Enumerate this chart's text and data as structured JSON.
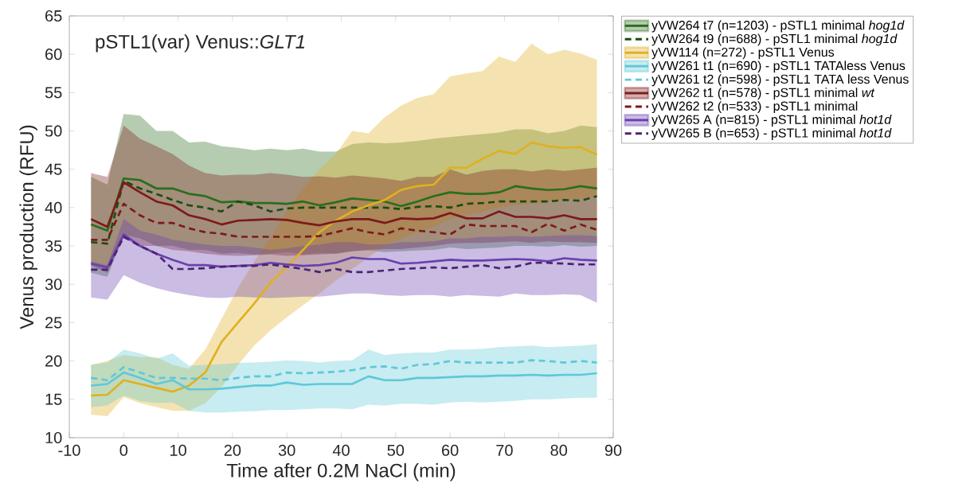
{
  "chart_data": {
    "type": "line",
    "title": "pSTL1(var) Venus::*GLT1*",
    "xlabel": "Time after 0.2M NaCl (min)",
    "ylabel": "Venus production (RFU)",
    "x": [
      -6,
      -3,
      0,
      3,
      6,
      9,
      12,
      15,
      18,
      21,
      24,
      27,
      30,
      33,
      36,
      39,
      42,
      45,
      48,
      51,
      54,
      57,
      60,
      63,
      66,
      69,
      72,
      75,
      78,
      81,
      84,
      87
    ],
    "xlim": [
      -10,
      90
    ],
    "xticks": [
      -10,
      0,
      10,
      20,
      30,
      40,
      50,
      60,
      70,
      80,
      90
    ],
    "ylim": [
      10,
      65
    ],
    "yticks": [
      10,
      15,
      20,
      25,
      30,
      35,
      40,
      45,
      50,
      55,
      60,
      65
    ],
    "legend": "top right",
    "grid": false,
    "line_style": "solid",
    "series": [
      {
        "name": "yVW264 t7 (n=1203) - pSTL1 minimal *hog1d*",
        "color": "#2a6e1e",
        "values": [
          37.8,
          37,
          43.8,
          43.6,
          42.5,
          42.5,
          41.8,
          41.5,
          40.7,
          40.8,
          40.6,
          40.6,
          40.5,
          40.8,
          40.3,
          40.7,
          41.2,
          41,
          40.8,
          40.2,
          40.8,
          41.5,
          42,
          41.8,
          41.8,
          42,
          42.8,
          42.5,
          42.3,
          42.4,
          42.8,
          42.5
        ],
        "upper": [
          44,
          43,
          52.2,
          52,
          50,
          50,
          48.5,
          48.6,
          48,
          47.8,
          47.5,
          47.7,
          47.5,
          47.7,
          47.3,
          47.3,
          48.3,
          48.5,
          48.4,
          48.5,
          48.7,
          49,
          49.2,
          49.4,
          49.6,
          49.8,
          50.2,
          50.2,
          49.7,
          50,
          50.7,
          50.5
        ],
        "lower": [
          31.5,
          31,
          36.5,
          36,
          35,
          35,
          34.5,
          34.5,
          34,
          34.1,
          33.9,
          34,
          34.2,
          33.9,
          34.1,
          34,
          34.3,
          34.4,
          34.2,
          34.3,
          34.4,
          34.5,
          34.8,
          34.6,
          34.7,
          34.8,
          35,
          35,
          34.9,
          35.1,
          34.9,
          35
        ]
      },
      {
        "name": "yVW264 t9 (n=688) - pSTL1 minimal *hog1d*",
        "color": "#1b4d12",
        "line_style": "dashed",
        "values": [
          35.5,
          35.3,
          43.5,
          42.5,
          41.8,
          41,
          40.3,
          40,
          39.5,
          40.8,
          40.3,
          39.5,
          39.9,
          40,
          40,
          40,
          40,
          40,
          40,
          39.8,
          40.1,
          40.2,
          40,
          40.5,
          40.6,
          40.8,
          40.8,
          40.8,
          40.8,
          41,
          40.9,
          41.5
        ]
      },
      {
        "name": "yVW114 (n=272) - pSTL1 Venus",
        "color": "#e0b020",
        "values": [
          15.5,
          15.6,
          17.5,
          17,
          16.5,
          16,
          16.8,
          18.5,
          22.5,
          25,
          27.5,
          30.2,
          32.3,
          34.5,
          36.8,
          38.3,
          39.5,
          40.3,
          41,
          42.3,
          42.8,
          43,
          45.2,
          45.2,
          46.4,
          47.4,
          47,
          48.5,
          48,
          47.8,
          47.9,
          46.9
        ],
        "upper": [
          19.5,
          20,
          20.8,
          20.5,
          20.5,
          19.5,
          19,
          21.5,
          25.5,
          29.5,
          33,
          36,
          39.5,
          42.5,
          45,
          47,
          50,
          49.7,
          51.8,
          53.3,
          54.3,
          54.8,
          57.1,
          57.5,
          57.8,
          59.7,
          59,
          61.4,
          60,
          60.6,
          60.1,
          59.3
        ],
        "lower": [
          13,
          12.8,
          15.3,
          14.5,
          14,
          13.5,
          13.5,
          14.5,
          16.6,
          19.5,
          22,
          24,
          25.7,
          27.3,
          28.8,
          30.5,
          32,
          33.5,
          35,
          36,
          36.8,
          37.5,
          38.5,
          39,
          39.5,
          40,
          40.3,
          40.5,
          40.8,
          41.05,
          41.2,
          41.5
        ]
      },
      {
        "name": "yVW261 t1 (n=690) - pSTL1 TATAless Venus",
        "color": "#5fc8d8",
        "values": [
          16.8,
          17,
          18.5,
          17.8,
          17,
          17.5,
          16.3,
          16.3,
          16.4,
          16.6,
          16.8,
          16.8,
          17.2,
          16.9,
          17,
          17,
          17,
          18,
          17.5,
          17.5,
          17.8,
          17.8,
          17.9,
          18,
          18,
          18.1,
          18.1,
          18.2,
          18.1,
          18.2,
          18.2,
          18.4
        ],
        "upper": [
          19.5,
          19.8,
          21.5,
          21,
          20.3,
          21,
          19.4,
          19.5,
          19.6,
          19.75,
          19.8,
          19.9,
          20.1,
          20,
          19.8,
          20,
          20.1,
          21.5,
          20.8,
          21,
          21.1,
          21.1,
          21.5,
          21.5,
          21.6,
          21.8,
          21.9,
          22,
          21.8,
          21.9,
          22,
          22.2
        ],
        "lower": [
          14,
          14.2,
          15.5,
          14.8,
          14.5,
          14.6,
          13.5,
          13.3,
          13.3,
          13.4,
          13.45,
          13.6,
          13.6,
          13.7,
          13.8,
          13.8,
          13.7,
          14.3,
          14.2,
          14.4,
          14.4,
          14.3,
          14.6,
          14.7,
          14.6,
          14.7,
          14.8,
          15,
          15,
          15.1,
          15.2,
          15.2
        ]
      },
      {
        "name": "yVW261 t2 (n=598) - pSTL1 TATA less Venus",
        "color": "#5fc8d8",
        "line_style": "dashed",
        "values": [
          17.8,
          17.5,
          19.2,
          18.5,
          17.8,
          17.8,
          17.7,
          17.7,
          17.5,
          17.8,
          18,
          18,
          18.5,
          18.4,
          18.5,
          18.6,
          18.8,
          19.2,
          19.3,
          19,
          19.5,
          19.6,
          20,
          19.8,
          19.8,
          19.8,
          19.8,
          20.1,
          20,
          19.8,
          20,
          19.8
        ]
      },
      {
        "name": "yVW262 t1 (n=578) - pSTL1 minimal *wt*",
        "color": "#7d1a1a",
        "values": [
          38.5,
          37.5,
          43.3,
          42,
          40.8,
          40.3,
          39,
          38.5,
          37.8,
          38.3,
          38.4,
          38.5,
          38.4,
          38,
          37.7,
          38.2,
          38.5,
          38.5,
          38,
          38.6,
          38.5,
          38.6,
          39.3,
          38.6,
          38.6,
          39.5,
          38.8,
          38.8,
          38.6,
          39,
          38.5,
          38.5
        ],
        "upper": [
          44.5,
          44,
          50.7,
          49,
          48,
          47,
          45.5,
          44.5,
          44.2,
          44.3,
          44.3,
          44.5,
          44.3,
          44,
          44.1,
          43.9,
          44.2,
          44,
          43.8,
          43.5,
          44,
          44,
          45,
          44.3,
          44.8,
          45,
          45,
          44.7,
          45,
          44.8,
          45,
          45.2
        ],
        "lower": [
          32.5,
          31.5,
          36,
          35,
          35,
          34.5,
          34.3,
          34,
          33.8,
          33.7,
          33.8,
          33.9,
          33.7,
          33.8,
          33.9,
          34,
          34.3,
          34.5,
          34.6,
          34.6,
          34.8,
          35,
          35.3,
          35.4,
          35.4,
          35.5,
          35.6,
          35.4,
          35.6,
          35.5,
          35.5,
          35.4
        ]
      },
      {
        "name": "yVW262 t2 (n=533) - pSTL1 minimal",
        "color": "#7d1a1a",
        "line_style": "dashed",
        "values": [
          35.8,
          35.8,
          40.5,
          39,
          38,
          38,
          37.3,
          36.8,
          36.6,
          36.2,
          36.2,
          36.2,
          36.2,
          36.2,
          36.3,
          36.8,
          37.3,
          36.8,
          36.5,
          37.3,
          37,
          36.8,
          36.5,
          37.8,
          37.6,
          37.6,
          37.6,
          36.8,
          37.9,
          37,
          37.8,
          37.1
        ]
      },
      {
        "name": "yVW265 A (n=815) - pSTL1 minimal *hot1d*",
        "color": "#6a40b0",
        "values": [
          32.7,
          32.2,
          36.5,
          35,
          34,
          33.2,
          32.5,
          32.5,
          32.3,
          32.4,
          32.5,
          32.8,
          32.6,
          32.4,
          32.5,
          32.8,
          33.5,
          33.3,
          33.3,
          32.7,
          32.8,
          33,
          33.2,
          33.1,
          33.1,
          33.2,
          33.3,
          33.2,
          33,
          33.4,
          33.2,
          33.1
        ],
        "upper": [
          33,
          32.5,
          38.5,
          37,
          36.5,
          35.8,
          35.5,
          35.2,
          35,
          35,
          34.8,
          34.5,
          34.7,
          35,
          35.2,
          35.5,
          35.5,
          35.2,
          35.2,
          35.5,
          35.5,
          35.6,
          36,
          36,
          36.2,
          36.2,
          36.3,
          36.2,
          36.3,
          36.4,
          36.4,
          36.3
        ],
        "lower": [
          28.3,
          28,
          31.2,
          30.2,
          29.5,
          29,
          28.6,
          28.3,
          28.2,
          28.4,
          28.3,
          28.2,
          28.3,
          28.4,
          28.4,
          28.6,
          28.8,
          28.8,
          28.6,
          28.5,
          28.6,
          28.6,
          28.4,
          28.6,
          28.5,
          28.4,
          28.8,
          28.6,
          28.6,
          28.7,
          28.6,
          27.6
        ]
      },
      {
        "name": "yVW265 B (n=653) - pSTL1 minimal *hot1d*",
        "color": "#4a2470",
        "line_style": "dashed",
        "values": [
          31.9,
          31.9,
          36.2,
          35,
          34,
          32,
          32,
          32.1,
          32.3,
          32.4,
          32.4,
          32.6,
          32.3,
          32,
          31.6,
          32,
          31.6,
          31.6,
          31.8,
          32,
          32.1,
          32.2,
          32.1,
          32.3,
          32.5,
          32.1,
          32.3,
          32.8,
          32.8,
          32.7,
          32.6,
          32.6
        ]
      }
    ]
  }
}
